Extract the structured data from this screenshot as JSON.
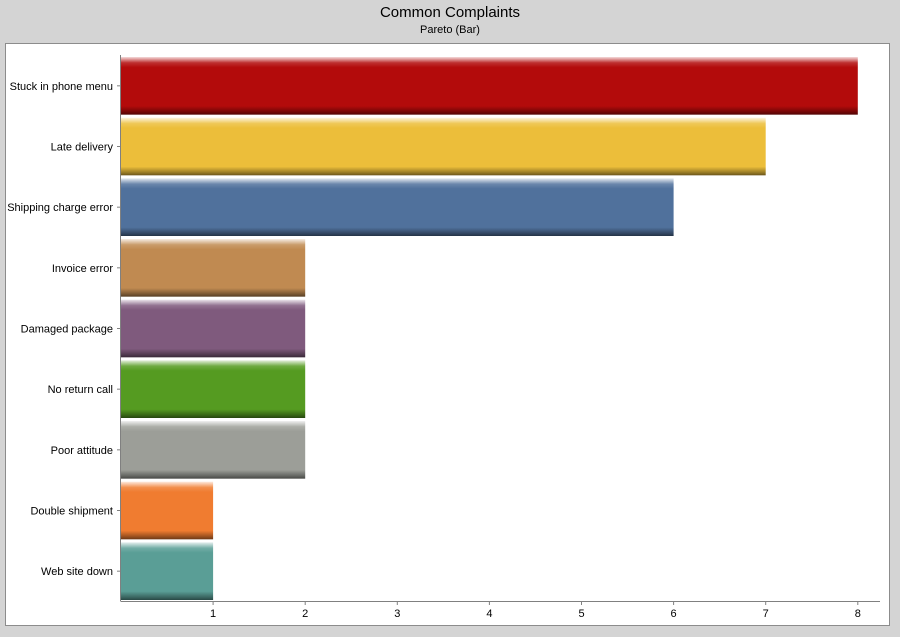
{
  "chart_data": {
    "type": "bar",
    "orientation": "horizontal",
    "title": "Common Complaints",
    "subtitle": "Pareto (Bar)",
    "categories": [
      "Stuck in phone menu",
      "Late delivery",
      "Shipping charge error",
      "Invoice error",
      "Damaged package",
      "No return call",
      "Poor attitude",
      "Double shipment",
      "Web site down"
    ],
    "values": [
      8,
      7,
      6,
      2,
      2,
      2,
      2,
      1,
      1
    ],
    "colors": [
      "#b30b0b",
      "#ecbe3a",
      "#50719c",
      "#c08a51",
      "#7f5a7d",
      "#559b21",
      "#9c9e98",
      "#f07c30",
      "#5a9e96"
    ],
    "xlim": [
      0,
      8.3
    ],
    "xticks": [
      "1",
      "2",
      "3",
      "4",
      "5",
      "6",
      "7",
      "8"
    ],
    "grid": false,
    "legend": "none"
  }
}
